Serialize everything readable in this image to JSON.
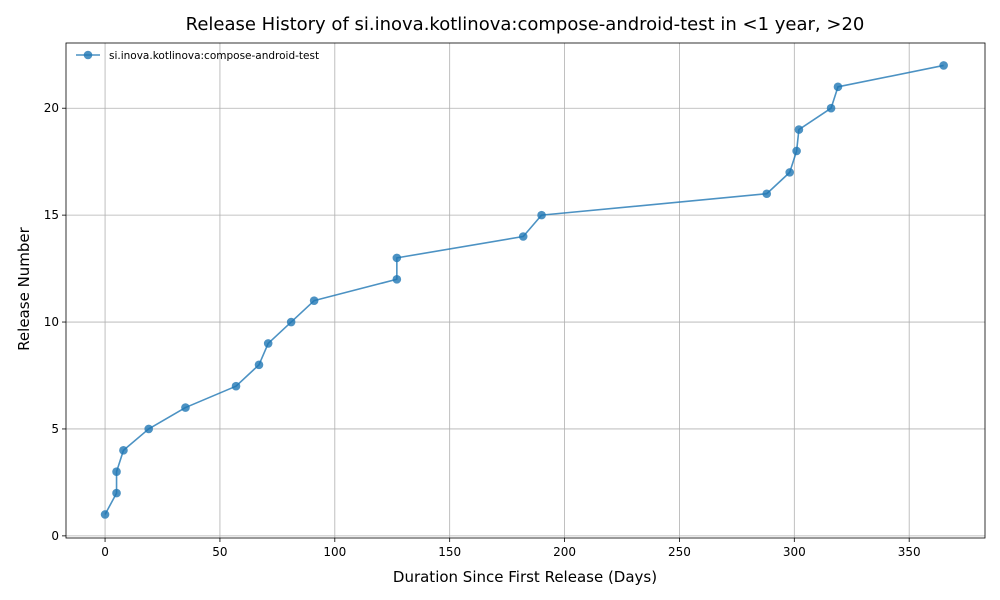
{
  "chart_data": {
    "type": "line",
    "title": "Release History of si.inova.kotlinova:compose-android-test in <1 year, >20",
    "xlabel": "Duration Since First Release (Days)",
    "ylabel": "Release Number",
    "xlim": [
      -17,
      383
    ],
    "ylim": [
      -0.1,
      23.05
    ],
    "xticks": [
      0,
      50,
      100,
      150,
      200,
      250,
      300,
      350
    ],
    "yticks": [
      0,
      5,
      10,
      15,
      20
    ],
    "grid": true,
    "legend_position": "top-left",
    "series": [
      {
        "name": "si.inova.kotlinova:compose-android-test",
        "color": "#1f77b4",
        "marker": "circle",
        "x": [
          0,
          5,
          5,
          8,
          19,
          35,
          57,
          67,
          71,
          81,
          91,
          127,
          127,
          182,
          190,
          288,
          298,
          301,
          302,
          316,
          319,
          365
        ],
        "y": [
          1,
          2,
          3,
          4,
          5,
          6,
          7,
          8,
          9,
          10,
          11,
          12,
          13,
          14,
          15,
          16,
          17,
          18,
          19,
          20,
          21,
          22
        ]
      }
    ]
  }
}
